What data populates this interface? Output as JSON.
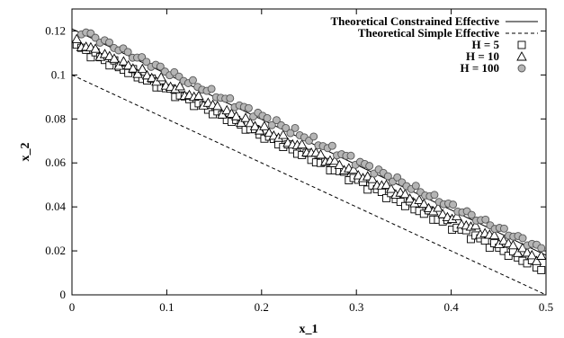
{
  "chart_data": {
    "type": "scatter",
    "xlabel": "x_1",
    "ylabel": "x_2",
    "xlim": [
      0,
      0.5
    ],
    "ylim": [
      0,
      0.13
    ],
    "x_ticks": [
      "0",
      "0.1",
      "0.2",
      "0.3",
      "0.4",
      "0.5"
    ],
    "y_ticks": [
      "0",
      "0.02",
      "0.04",
      "0.06",
      "0.08",
      "0.1",
      "0.12"
    ],
    "grid": false,
    "legend_position": "top-right",
    "lines": [
      {
        "name": "Theoretical Constrained Effective",
        "style": "solid",
        "x": [
          0.0,
          0.5
        ],
        "y": [
          0.121,
          0.018
        ]
      },
      {
        "name": "Theoretical Simple Effective",
        "style": "dashed",
        "x": [
          0.0,
          0.5
        ],
        "y": [
          0.1,
          0.0
        ]
      }
    ],
    "series": [
      {
        "name": "H = 5",
        "marker": "square",
        "color": "#ffffff",
        "x_start": 0.005,
        "x_end": 0.495,
        "y_start": 0.113,
        "y_end": 0.012,
        "count": 100
      },
      {
        "name": "H = 10",
        "marker": "triangle",
        "color": "#ffffff",
        "x_start": 0.005,
        "x_end": 0.495,
        "y_start": 0.115,
        "y_end": 0.016,
        "count": 100
      },
      {
        "name": "H = 100",
        "marker": "circle",
        "color": "#b5b5b5",
        "x_start": 0.01,
        "x_end": 0.495,
        "y_start": 0.12,
        "y_end": 0.021,
        "count": 100
      }
    ]
  }
}
